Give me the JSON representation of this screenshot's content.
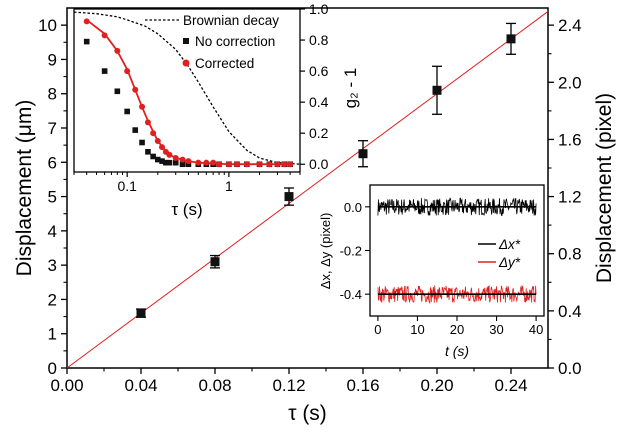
{
  "chart_data": [
    {
      "type": "scatter",
      "role": "main",
      "xlabel": "τ (s)",
      "ylabel_left": "Displacement (μm)",
      "ylabel_right": "Displacement (pixel)",
      "xlim": [
        0,
        0.26
      ],
      "ylim": [
        0,
        10.5
      ],
      "ylim_right": [
        0,
        2.52
      ],
      "x_ticks": [
        "0.00",
        "0.04",
        "0.08",
        "0.12",
        "0.16",
        "0.20",
        "0.24"
      ],
      "x_tick_values": [
        0,
        0.04,
        0.08,
        0.12,
        0.16,
        0.2,
        0.24
      ],
      "y_ticks_left": [
        "0",
        "1",
        "2",
        "3",
        "4",
        "5",
        "6",
        "7",
        "8",
        "9",
        "10"
      ],
      "y_tick_values_left": [
        0,
        1,
        2,
        3,
        4,
        5,
        6,
        7,
        8,
        9,
        10
      ],
      "y_ticks_right": [
        "0.0",
        "0.4",
        "0.8",
        "1.2",
        "1.6",
        "2.0",
        "2.4"
      ],
      "y_tick_values_right": [
        0,
        0.4,
        0.8,
        1.2,
        1.6,
        2.0,
        2.4
      ],
      "series": [
        {
          "marker": "square",
          "color": "#000000",
          "x": [
            0.04,
            0.08,
            0.12,
            0.16,
            0.2,
            0.24
          ],
          "y": [
            1.6,
            3.1,
            5.0,
            6.25,
            8.1,
            9.6
          ],
          "err": [
            0.12,
            0.18,
            0.25,
            0.38,
            0.7,
            0.45
          ]
        },
        {
          "kind": "line",
          "color": "#e02020",
          "x": [
            0,
            0.26
          ],
          "y": [
            0,
            10.4
          ]
        }
      ]
    },
    {
      "type": "scatter",
      "role": "inset-top-left",
      "xlabel": "τ (s)",
      "ylabel": "g₂ - 1",
      "xscale": "log",
      "xlim": [
        0.03,
        5
      ],
      "ylim": [
        -0.05,
        1.0
      ],
      "x_ticks": [
        "0.1",
        "1"
      ],
      "x_tick_values": [
        0.1,
        1
      ],
      "y_ticks": [
        "0.0",
        "0.2",
        "0.4",
        "0.6",
        "0.8",
        "1.0"
      ],
      "y_tick_values": [
        0,
        0.2,
        0.4,
        0.6,
        0.8,
        1.0
      ],
      "legend": "top-right",
      "series": [
        {
          "name": "Brownian decay",
          "kind": "line",
          "style": "dotted",
          "color": "#000000",
          "x": [
            0.03,
            0.05,
            0.08,
            0.1,
            0.15,
            0.2,
            0.3,
            0.4,
            0.5,
            0.7,
            1.0,
            1.5,
            2.0,
            3.0,
            5.0
          ],
          "y": [
            0.98,
            0.97,
            0.95,
            0.93,
            0.89,
            0.84,
            0.74,
            0.63,
            0.53,
            0.37,
            0.21,
            0.09,
            0.04,
            0.01,
            0.0
          ]
        },
        {
          "name": "No correction",
          "marker": "square",
          "color": "#111111",
          "x": [
            0.04,
            0.06,
            0.08,
            0.1,
            0.12,
            0.14,
            0.16,
            0.18,
            0.2,
            0.22,
            0.24,
            0.26,
            0.3,
            0.35,
            0.4,
            0.5,
            0.6,
            0.7,
            0.8,
            1.0,
            1.2,
            1.5,
            2.0,
            2.5,
            3.0,
            3.5,
            4.0
          ],
          "y": [
            0.79,
            0.6,
            0.47,
            0.34,
            0.22,
            0.14,
            0.08,
            0.05,
            0.03,
            0.02,
            0.01,
            0.01,
            0.01,
            0.0,
            0.0,
            0.0,
            0.0,
            0.0,
            0.0,
            0.0,
            0.0,
            0.0,
            0.0,
            0.0,
            0.0,
            0.0,
            0.0
          ]
        },
        {
          "name": "Corrected",
          "marker": "circle",
          "color": "#e02020",
          "x": [
            0.04,
            0.06,
            0.08,
            0.1,
            0.12,
            0.14,
            0.16,
            0.18,
            0.2,
            0.22,
            0.24,
            0.26,
            0.3,
            0.35,
            0.4,
            0.5,
            0.6,
            0.7,
            0.8,
            1.0,
            1.2,
            1.5,
            2.0,
            2.5,
            3.0,
            3.5,
            4.0
          ],
          "y": [
            0.92,
            0.83,
            0.73,
            0.6,
            0.48,
            0.37,
            0.27,
            0.2,
            0.15,
            0.11,
            0.08,
            0.06,
            0.04,
            0.03,
            0.02,
            0.01,
            0.01,
            0.01,
            0.0,
            0.0,
            0.0,
            0.0,
            0.0,
            0.0,
            0.0,
            0.0,
            0.0
          ]
        },
        {
          "kind": "line",
          "color": "#e02020",
          "x": [
            0.04,
            0.06,
            0.08,
            0.1,
            0.12,
            0.14,
            0.16,
            0.18,
            0.2,
            0.25,
            0.3,
            0.4,
            0.5,
            0.7,
            1.0,
            2.0,
            4.0
          ],
          "y": [
            0.93,
            0.84,
            0.73,
            0.61,
            0.48,
            0.37,
            0.28,
            0.21,
            0.15,
            0.07,
            0.04,
            0.02,
            0.01,
            0.005,
            0.0,
            0.0,
            0.0
          ]
        }
      ]
    },
    {
      "type": "line",
      "role": "inset-bottom-right",
      "xlabel": "t (s)",
      "ylabel": "Δx, Δy (pixel)",
      "xlim": [
        -2,
        42
      ],
      "ylim": [
        -0.5,
        0.1
      ],
      "x_ticks": [
        "0",
        "10",
        "20",
        "30",
        "40"
      ],
      "x_tick_values": [
        0,
        10,
        20,
        30,
        40
      ],
      "y_ticks": [
        "0.0",
        "-0.2",
        "-0.4"
      ],
      "y_tick_values": [
        0.0,
        -0.2,
        -0.4
      ],
      "legend": "bottom-right",
      "series": [
        {
          "name": "Δx*",
          "color": "#000000",
          "mean": 0.0,
          "noise_amplitude": 0.04,
          "x_range": [
            0,
            40
          ]
        },
        {
          "name": "Δy*",
          "color": "#e02020",
          "mean": -0.4,
          "noise_amplitude": 0.04,
          "x_range": [
            0,
            40
          ]
        }
      ]
    }
  ]
}
